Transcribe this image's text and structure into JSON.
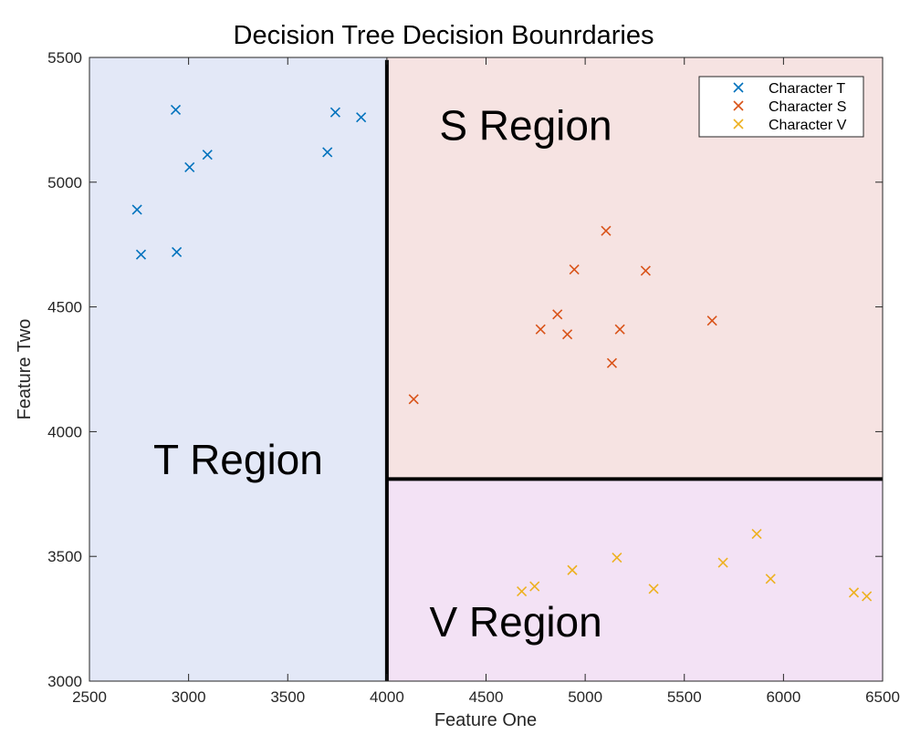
{
  "chart_data": {
    "type": "scatter",
    "title": "Decision Tree Decision Bounrdaries",
    "xlabel": "Feature One",
    "ylabel": "Feature Two",
    "xlim": [
      2500,
      6500
    ],
    "ylim": [
      3000,
      5500
    ],
    "xticks": [
      2500,
      3000,
      3500,
      4000,
      4500,
      5000,
      5500,
      6000,
      6500
    ],
    "yticks": [
      3000,
      3500,
      4000,
      4500,
      5000,
      5500
    ],
    "grid": false,
    "legend_position": "top-right",
    "marker": "x",
    "regions": [
      {
        "label": "T Region",
        "x_range": [
          2500,
          4000
        ],
        "y_range": [
          3000,
          5500
        ],
        "color": "#e3e8f7",
        "label_pos": [
          3250,
          3830
        ]
      },
      {
        "label": "S Region",
        "x_range": [
          4000,
          6500
        ],
        "y_range": [
          3810,
          5500
        ],
        "color": "#f6e3e2",
        "label_pos": [
          4700,
          5170
        ]
      },
      {
        "label": "V Region",
        "x_range": [
          4000,
          6500
        ],
        "y_range": [
          3000,
          3810
        ],
        "color": "#f3e2f5",
        "label_pos": [
          4650,
          3180
        ]
      }
    ],
    "boundaries": [
      {
        "x": [
          4000,
          4000
        ],
        "y": [
          3000,
          5490
        ]
      },
      {
        "x": [
          4000,
          6500
        ],
        "y": [
          3810,
          3810
        ]
      }
    ],
    "series": [
      {
        "name": "Character T",
        "color": "#0072bd",
        "x": [
          2740,
          2760,
          2940,
          2935,
          3005,
          3095,
          3700,
          3740,
          3870
        ],
        "y": [
          4890,
          4710,
          4720,
          5290,
          5060,
          5110,
          5120,
          5280,
          5260
        ]
      },
      {
        "name": "Character S",
        "color": "#d95319",
        "x": [
          4135,
          4775,
          4860,
          4910,
          4945,
          5105,
          5135,
          5175,
          5305,
          5640
        ],
        "y": [
          4130,
          4410,
          4470,
          4390,
          4650,
          4805,
          4275,
          4410,
          4645,
          4445
        ]
      },
      {
        "name": "Character V",
        "color": "#edb120",
        "x": [
          4680,
          4745,
          4935,
          5160,
          5345,
          5695,
          5865,
          5935,
          6355,
          6420
        ],
        "y": [
          3360,
          3380,
          3445,
          3495,
          3370,
          3475,
          3590,
          3410,
          3355,
          3340
        ]
      }
    ]
  }
}
